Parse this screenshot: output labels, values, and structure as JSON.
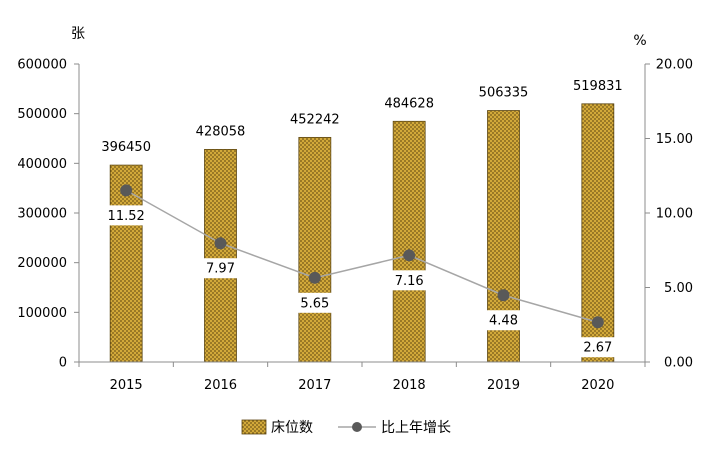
{
  "chart_data": {
    "type": "bar",
    "categories": [
      "2015",
      "2016",
      "2017",
      "2018",
      "2019",
      "2020"
    ],
    "series": [
      {
        "name": "床位数",
        "type": "bar",
        "axis": "left",
        "values": [
          396450,
          428058,
          452242,
          484628,
          506335,
          519831
        ],
        "color": "#d2a93a",
        "pattern_color": "#6b5116",
        "outline_color": "#5c4612"
      },
      {
        "name": "比上年增长",
        "type": "line",
        "axis": "right",
        "values": [
          11.52,
          7.97,
          5.65,
          7.16,
          4.48,
          2.67
        ],
        "color": "#a6a6a6",
        "marker_color": "#595959"
      }
    ],
    "y_left": {
      "label": "张",
      "range": [
        0,
        600000
      ],
      "ticks": [
        "0",
        "100000",
        "200000",
        "300000",
        "400000",
        "500000",
        "600000"
      ]
    },
    "y_right": {
      "label": "%",
      "range": [
        0,
        20
      ],
      "ticks": [
        "0.00",
        "5.00",
        "10.00",
        "15.00",
        "20.00"
      ]
    },
    "grid": false,
    "legend": "bottom"
  }
}
